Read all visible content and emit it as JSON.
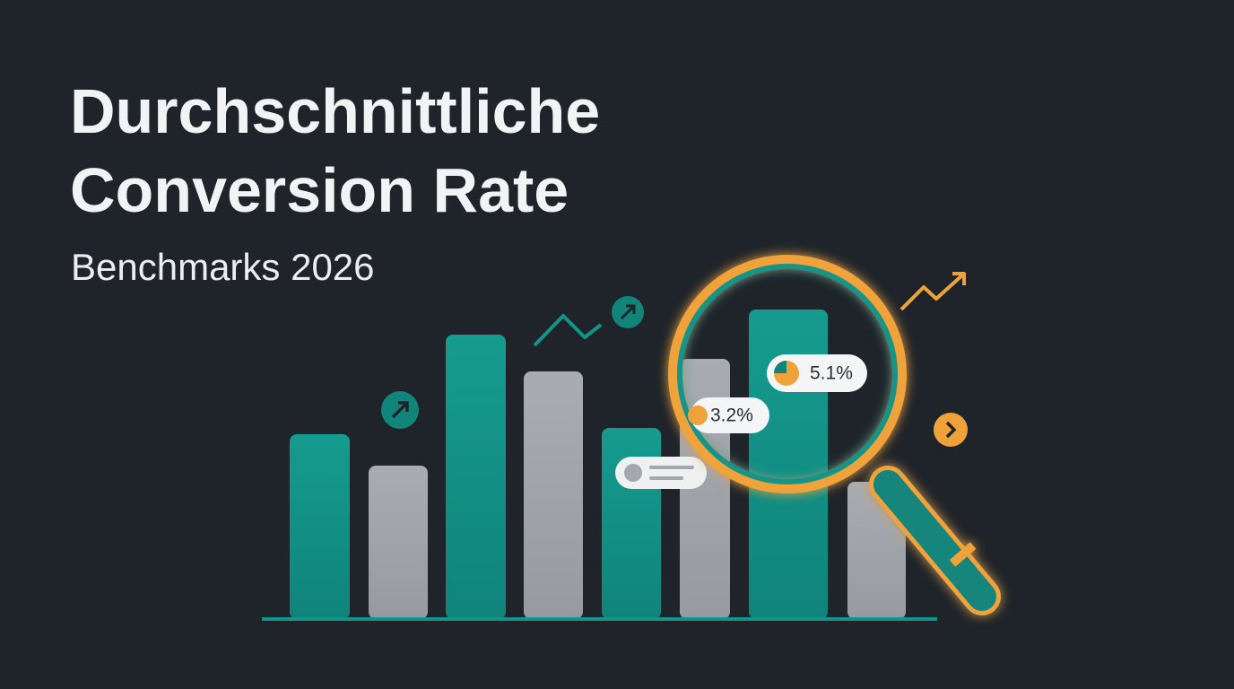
{
  "header": {
    "title": [
      "Durchschnittliche",
      "Conversion Rate"
    ],
    "subtitle": "Benchmarks 2026"
  },
  "badges": [
    {
      "label": "5.1%"
    },
    {
      "label": "3.2%"
    }
  ]
}
